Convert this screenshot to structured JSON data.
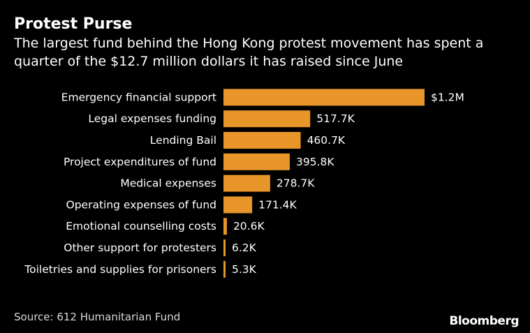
{
  "title": "Protest Purse",
  "subtitle": "The largest fund behind the Hong Kong protest movement has spent a quarter of the $12.7 million dollars it has raised since June",
  "source": "Source: 612 Humanitarian Fund",
  "logo": "Bloomberg",
  "bar_color": "#e8952a",
  "chart_data": {
    "type": "bar",
    "orientation": "horizontal",
    "categories": [
      "Emergency financial support",
      "Legal expenses funding",
      "Lending Bail",
      "Project expenditures of fund",
      "Medical expenses",
      "Operating expenses of fund",
      "Emotional counselling costs",
      "Other support for protesters",
      "Toiletries and supplies for prisoners"
    ],
    "values": [
      1200000,
      517700,
      460700,
      395800,
      278700,
      171400,
      20600,
      6200,
      5300
    ],
    "value_labels": [
      "$1.2M",
      "517.7K",
      "460.7K",
      "395.8K",
      "278.7K",
      "171.4K",
      "20.6K",
      "6.2K",
      "5.3K"
    ],
    "title": "Protest Purse",
    "xlabel": "",
    "ylabel": "",
    "grid": false,
    "legend": "none"
  }
}
